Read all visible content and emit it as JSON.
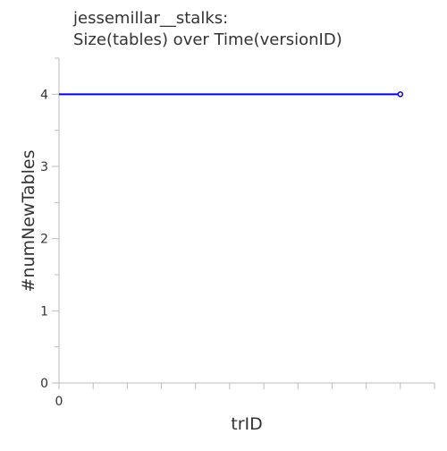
{
  "chart_data": {
    "type": "line",
    "title_line1": "jessemillar__stalks:",
    "title_line2": "Size(tables) over Time(versionID)",
    "xlabel": "trID",
    "ylabel": "#numNewTables",
    "xlim": [
      0,
      11
    ],
    "ylim": [
      0,
      4.5
    ],
    "x_tick_labels": [
      "0"
    ],
    "y_ticks": [
      0,
      1,
      2,
      3,
      4
    ],
    "y_tick_labels": [
      "0",
      "1",
      "2",
      "3",
      "4"
    ],
    "grid": false,
    "series": [
      {
        "color": "#0000ee",
        "x": [
          0,
          10
        ],
        "y": [
          4,
          4
        ],
        "marker_on_last": true
      }
    ]
  }
}
